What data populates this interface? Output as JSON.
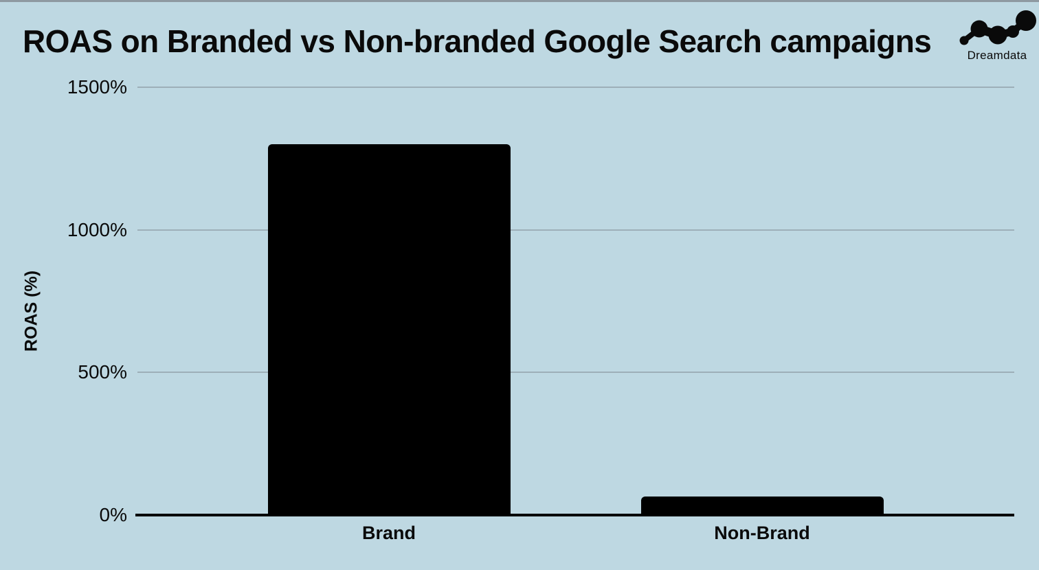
{
  "page": {
    "background_color": "#bed8e2",
    "top_strip_color": "#8e99a1",
    "text_color": "#0a0a0a"
  },
  "header": {
    "title": "ROAS on Branded vs Non-branded Google Search campaigns",
    "logo": {
      "text": "Dreamdata"
    }
  },
  "chart_data": {
    "type": "bar",
    "title": "ROAS on Branded vs Non-branded Google Search campaigns",
    "categories": [
      "Brand",
      "Non-Brand"
    ],
    "values": [
      1300,
      65
    ],
    "value_unit": "percent",
    "xlabel": "",
    "ylabel": "ROAS (%)",
    "ylim": [
      0,
      1500
    ],
    "yticks": [
      {
        "value": 0,
        "label": "0%"
      },
      {
        "value": 500,
        "label": "500%"
      },
      {
        "value": 1000,
        "label": "1000%"
      },
      {
        "value": 1500,
        "label": "1500%"
      }
    ],
    "grid": "horizontal",
    "legend": "none",
    "bar_color": "#000000",
    "gridline_color": "#9dafb8",
    "axis_line_color": "#000000"
  }
}
